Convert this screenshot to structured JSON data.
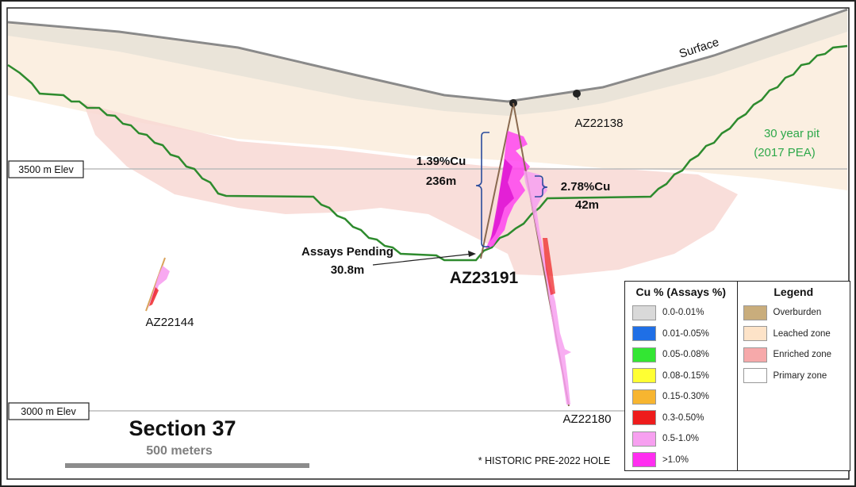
{
  "labels": {
    "surface": "Surface",
    "pit_line1": "30 year pit",
    "pit_line2": "(2017 PEA)",
    "elev_3500": "3500 m Elev",
    "elev_3000": "3000 m Elev",
    "hole_main": "AZ23191",
    "hole_a": "AZ22138",
    "hole_b": "AZ22144",
    "hole_c": "AZ22180",
    "interval1_grade": "1.39%Cu",
    "interval1_length": "236m",
    "interval2_grade": "2.78%Cu",
    "interval2_length": "42m",
    "pending_line1": "Assays Pending",
    "pending_line2": "30.8m",
    "section": "Section 37",
    "scale": "500 meters",
    "historic_note": "* HISTORIC PRE-2022 HOLE"
  },
  "cu_legend": {
    "title": "Cu % (Assays %)",
    "items": [
      {
        "label": "0.0-0.01%",
        "color": "#d9d9d9"
      },
      {
        "label": "0.01-0.05%",
        "color": "#1f6fe6"
      },
      {
        "label": "0.05-0.08%",
        "color": "#33e633"
      },
      {
        "label": "0.08-0.15%",
        "color": "#ffff33"
      },
      {
        "label": "0.15-0.30%",
        "color": "#f7b530"
      },
      {
        "label": "0.3-0.50%",
        "color": "#ee1c1c"
      },
      {
        "label": "0.5-1.0%",
        "color": "#f7a0f0"
      },
      {
        "label": ">1.0%",
        "color": "#ff2ef0"
      }
    ]
  },
  "zone_legend": {
    "title": "Legend",
    "items": [
      {
        "label": "Overburden",
        "color": "#c9ad7c"
      },
      {
        "label": "Leached zone",
        "color": "#fde3c8"
      },
      {
        "label": "Enriched zone",
        "color": "#f6a9aa"
      },
      {
        "label": "Primary zone",
        "color": "#ffffff"
      }
    ]
  },
  "colors": {
    "pit": "#2e8b2e",
    "pit_text": "#2ea84a",
    "surface_line": "#888888",
    "leached": "#fbe9d6",
    "overburden": "#e9e3d6",
    "enriched": "#f7dcd8",
    "bracket": "#2a4c9c"
  }
}
